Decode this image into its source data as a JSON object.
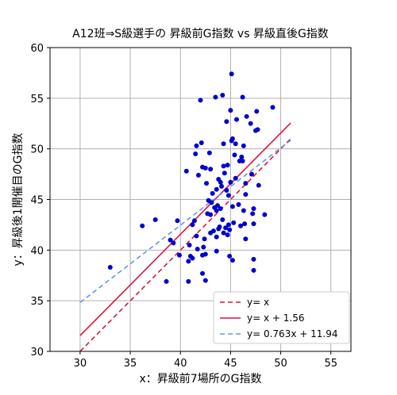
{
  "chart_data": {
    "type": "scatter",
    "title": "A12班⇒S級選手の 昇級前G指数 vs 昇級直後G指数",
    "xlabel": "x：昇級前7場所のG指数",
    "ylabel": "y：昇級後1開催目のG指数",
    "xlim": [
      27,
      57
    ],
    "ylim": [
      30,
      60
    ],
    "xticks": [
      30,
      35,
      40,
      45,
      50,
      55
    ],
    "yticks": [
      30,
      35,
      40,
      45,
      50,
      55,
      60
    ],
    "grid": true,
    "legend_position": "lower-right",
    "colors": {
      "points": "#0000cd",
      "identity": "#dc143c",
      "shift": "#dc143c",
      "regression": "#6495ed",
      "grid": "#b0b0b0"
    },
    "lines": [
      {
        "name": "y= x",
        "slope": 1.0,
        "intercept": 0.0,
        "x_range": [
          30,
          51
        ],
        "style": "dashed",
        "color": "#dc143c"
      },
      {
        "name": "y= x + 1.56",
        "slope": 1.0,
        "intercept": 1.56,
        "x_range": [
          30,
          51
        ],
        "style": "solid",
        "color": "#dc143c"
      },
      {
        "name": "y= 0.763x + 11.94",
        "slope": 0.763,
        "intercept": 11.94,
        "x_range": [
          30,
          51
        ],
        "style": "dashed",
        "color": "#6495ed"
      }
    ],
    "points": [
      [
        45.1,
        57.4
      ],
      [
        46.2,
        55.1
      ],
      [
        43.5,
        55.1
      ],
      [
        44.2,
        55.3
      ],
      [
        42.0,
        54.8
      ],
      [
        49.2,
        54.1
      ],
      [
        47.6,
        53.7
      ],
      [
        45.0,
        53.8
      ],
      [
        46.6,
        53.2
      ],
      [
        44.6,
        52.7
      ],
      [
        45.6,
        52.9
      ],
      [
        47.0,
        52.5
      ],
      [
        47.5,
        51.8
      ],
      [
        47.7,
        51.9
      ],
      [
        45.2,
        51.0
      ],
      [
        45.5,
        50.5
      ],
      [
        44.3,
        50.5
      ],
      [
        42.1,
        50.6
      ],
      [
        41.6,
        50.3
      ],
      [
        45.1,
        50.8
      ],
      [
        46.3,
        50.3
      ],
      [
        41.5,
        49.5
      ],
      [
        42.9,
        49.6
      ],
      [
        45.4,
        49.4
      ],
      [
        46.1,
        49.2
      ],
      [
        45.9,
        48.8
      ],
      [
        46.2,
        48.8
      ],
      [
        42.2,
        48.2
      ],
      [
        42.5,
        48.1
      ],
      [
        43.0,
        48.0
      ],
      [
        44.3,
        48.3
      ],
      [
        44.7,
        48.4
      ],
      [
        40.6,
        47.8
      ],
      [
        41.8,
        47.4
      ],
      [
        44.4,
        47.6
      ],
      [
        47.1,
        47.5
      ],
      [
        43.8,
        47.0
      ],
      [
        45.5,
        47.1
      ],
      [
        45.0,
        46.7
      ],
      [
        44.0,
        46.7
      ],
      [
        42.6,
        46.6
      ],
      [
        46.5,
        46.6
      ],
      [
        44.1,
        46.3
      ],
      [
        43.6,
        46.0
      ],
      [
        47.8,
        46.4
      ],
      [
        44.6,
        45.9
      ],
      [
        43.2,
        45.6
      ],
      [
        46.5,
        45.5
      ],
      [
        44.8,
        45.4
      ],
      [
        42.8,
        44.9
      ],
      [
        43.1,
        44.7
      ],
      [
        43.7,
        44.4
      ],
      [
        43.4,
        44.2
      ],
      [
        43.6,
        43.9
      ],
      [
        44.0,
        44.1
      ],
      [
        45.2,
        44.3
      ],
      [
        45.8,
        44.5
      ],
      [
        47.3,
        44.1
      ],
      [
        46.3,
        43.9
      ],
      [
        42.7,
        43.6
      ],
      [
        43.0,
        43.5
      ],
      [
        44.2,
        43.0
      ],
      [
        47.2,
        43.6
      ],
      [
        48.4,
        43.5
      ],
      [
        39.7,
        42.9
      ],
      [
        37.5,
        43.0
      ],
      [
        41.4,
        42.9
      ],
      [
        45.3,
        42.7
      ],
      [
        46.4,
        42.6
      ],
      [
        36.2,
        42.4
      ],
      [
        41.2,
        42.5
      ],
      [
        43.9,
        42.3
      ],
      [
        44.5,
        42.2
      ],
      [
        44.8,
        42.5
      ],
      [
        46.0,
        42.4
      ],
      [
        47.3,
        42.6
      ],
      [
        43.3,
        41.9
      ],
      [
        44.3,
        41.7
      ],
      [
        43.6,
        41.3
      ],
      [
        44.7,
        41.5
      ],
      [
        41.6,
        41.4
      ],
      [
        42.4,
        41.1
      ],
      [
        43.0,
        41.7
      ],
      [
        44.9,
        42.0
      ],
      [
        43.8,
        42.1
      ],
      [
        46.5,
        41.1
      ],
      [
        39.0,
        41.0
      ],
      [
        40.9,
        40.5
      ],
      [
        42.3,
        40.3
      ],
      [
        39.3,
        40.7
      ],
      [
        41.7,
        40.1
      ],
      [
        43.6,
        39.9
      ],
      [
        42.5,
        39.6
      ],
      [
        39.9,
        39.5
      ],
      [
        42.2,
        39.5
      ],
      [
        41.0,
        39.4
      ],
      [
        44.9,
        39.4
      ],
      [
        41.2,
        39.2
      ],
      [
        47.3,
        39.1
      ],
      [
        40.8,
        38.9
      ],
      [
        45.2,
        39.0
      ],
      [
        33.0,
        38.3
      ],
      [
        47.3,
        38.0
      ],
      [
        42.2,
        37.7
      ],
      [
        38.6,
        36.9
      ],
      [
        40.8,
        36.9
      ],
      [
        42.5,
        37.0
      ]
    ]
  }
}
